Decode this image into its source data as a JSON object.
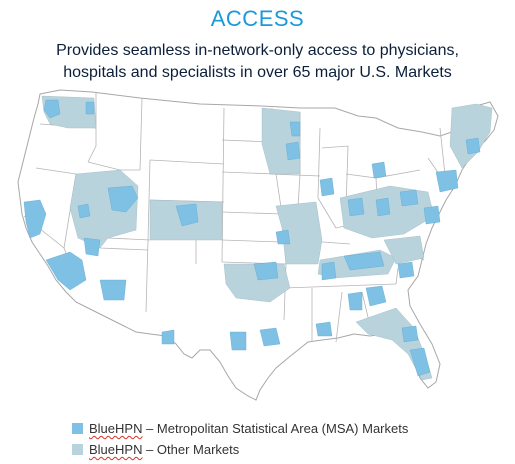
{
  "title": "ACCESS",
  "subtitle_line1": "Provides seamless in-network-only access to physicians,",
  "subtitle_line2": "hospitals and specialists in over 65 major U.S. Markets",
  "colors": {
    "msa": "#7fc1e4",
    "other": "#b9d3dc",
    "border": "#a7a7a7",
    "title": "#1a9ad6"
  },
  "legend": [
    {
      "brand": "BlueHPN",
      "text": " – Metropolitan Statistical Area (MSA) Markets",
      "color_key": "msa"
    },
    {
      "brand": "BlueHPN",
      "text": " – Other Markets",
      "color_key": "other"
    }
  ]
}
